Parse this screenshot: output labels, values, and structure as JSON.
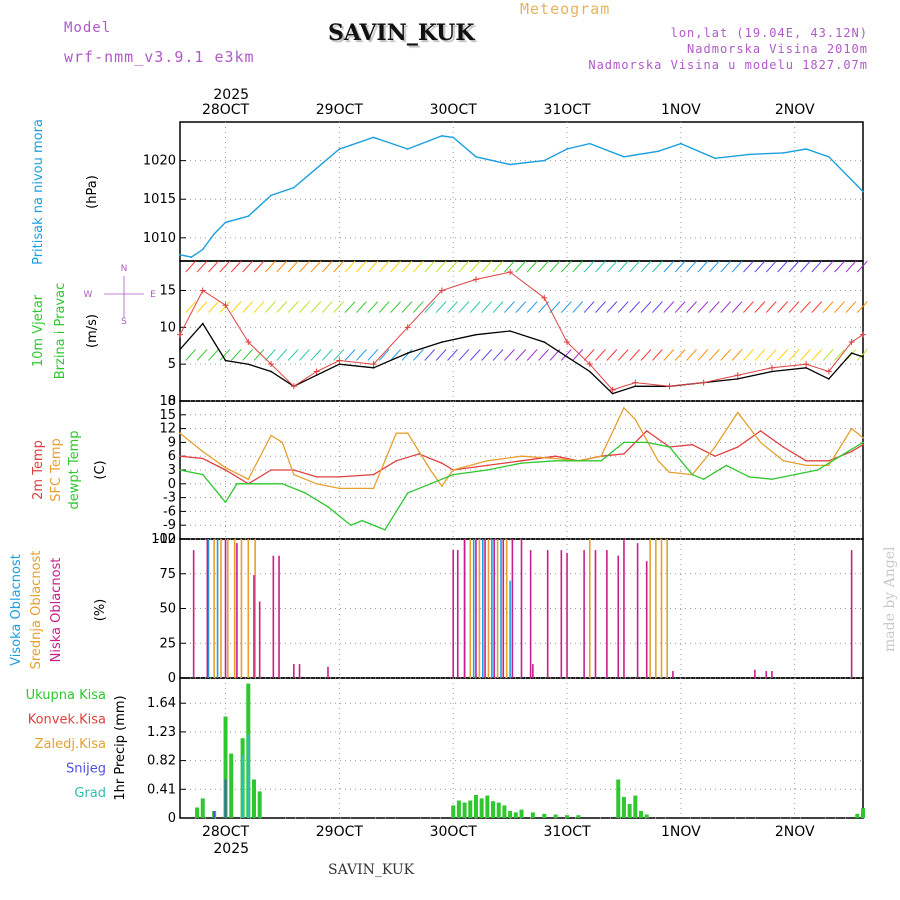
{
  "header": {
    "subtitle": "Meteogram",
    "title": "SAVIN_KUK",
    "model_label": "Model",
    "model_name": "wrf-nmm_v3.9.1 e3km",
    "location_lines": [
      "lon,lat (19.04E, 43.12N)",
      "Nadmorska Visina 2010m",
      "Nadmorska Visina u modelu 1827.07m"
    ],
    "credit": "made by Angel",
    "footer": "SAVIN_KUK"
  },
  "colors": {
    "frame": "#000000",
    "grid": "#9a9a9a",
    "pressure": "#1aa0e0",
    "wind_legend": "#b05ac8"
  },
  "chart_data": [
    {
      "type": "line",
      "panel": "pressure",
      "ylabel_lines": [
        "Pritisak na nivou mora"
      ],
      "unit": "(hPa)",
      "ylim": [
        1007,
        1025
      ],
      "yticks": [
        1010,
        1015,
        1020
      ],
      "top_axis": {
        "year": "2025",
        "days": [
          "28OCT",
          "29OCT",
          "30OCT",
          "31OCT",
          "1NOV",
          "2NOV"
        ]
      },
      "series": [
        {
          "name": "Pritisak na nivou mora",
          "color": "#1aa0e0",
          "x": [
            27.6,
            27.7,
            27.8,
            27.9,
            28.0,
            28.2,
            28.4,
            28.6,
            28.8,
            29.0,
            29.1,
            29.3,
            29.6,
            29.9,
            30.0,
            30.2,
            30.5,
            30.8,
            31.0,
            31.2,
            31.5,
            31.8,
            32.0,
            32.3,
            32.6,
            32.9,
            33.1,
            33.3,
            33.6
          ],
          "values": [
            1007.8,
            1007.5,
            1008.5,
            1010.5,
            1012,
            1012.8,
            1015.5,
            1016.5,
            1019,
            1021.5,
            1022,
            1023,
            1021.5,
            1023.2,
            1023,
            1020.5,
            1019.5,
            1020,
            1021.5,
            1022.2,
            1020.5,
            1021.2,
            1022.2,
            1020.3,
            1020.8,
            1021,
            1021.5,
            1020.5,
            1016
          ]
        }
      ]
    },
    {
      "type": "line",
      "panel": "wind",
      "ylabel_lines": [
        "10m Vjetar",
        "Brzina i Pravac"
      ],
      "unit": "(m/s)",
      "direction_legend": [
        "N",
        "W",
        "E",
        "S"
      ],
      "ylim": [
        0,
        19
      ],
      "yticks": [
        0,
        5,
        10,
        15
      ],
      "series": [
        {
          "name": "10m wind speed",
          "color": "#000000",
          "x": [
            27.6,
            27.8,
            28.0,
            28.2,
            28.4,
            28.6,
            28.8,
            29.0,
            29.3,
            29.6,
            29.9,
            30.2,
            30.5,
            30.8,
            31.0,
            31.2,
            31.4,
            31.6,
            31.9,
            32.2,
            32.5,
            32.8,
            33.1,
            33.3,
            33.5,
            33.6
          ],
          "values": [
            7,
            10.5,
            5.5,
            5,
            4,
            2,
            3.5,
            5,
            4.5,
            6.5,
            8,
            9,
            9.5,
            8,
            6,
            4,
            1,
            2,
            2,
            2.5,
            3,
            4,
            4.5,
            3,
            6.5,
            6
          ]
        },
        {
          "name": "gust",
          "color": "#e04040",
          "x": [
            27.6,
            27.8,
            28.0,
            28.2,
            28.4,
            28.6,
            28.8,
            29.0,
            29.3,
            29.6,
            29.9,
            30.2,
            30.5,
            30.8,
            31.0,
            31.2,
            31.4,
            31.6,
            31.9,
            32.2,
            32.5,
            32.8,
            33.1,
            33.3,
            33.5,
            33.6
          ],
          "values": [
            9,
            15,
            13,
            8,
            5,
            2,
            4,
            5.5,
            5,
            10,
            15,
            16.5,
            17.5,
            14,
            8,
            5,
            1.5,
            2.5,
            2,
            2.5,
            3.5,
            4.5,
            5,
            4,
            8,
            9
          ]
        }
      ]
    },
    {
      "type": "line",
      "panel": "temperature",
      "ylabel_lines": [
        "2m Temp",
        "SFC Temp",
        "dewpt Temp"
      ],
      "unit": "(C)",
      "ylim": [
        -12,
        18
      ],
      "yticks": [
        -12,
        -9,
        -6,
        -3,
        0,
        3,
        6,
        9,
        12,
        15,
        18
      ],
      "series": [
        {
          "name": "2m Temp",
          "color": "#e04040",
          "x": [
            27.6,
            27.8,
            28.0,
            28.2,
            28.4,
            28.6,
            28.8,
            29.0,
            29.3,
            29.5,
            29.7,
            29.9,
            30.0,
            30.3,
            30.6,
            30.9,
            31.1,
            31.3,
            31.5,
            31.7,
            31.9,
            32.1,
            32.3,
            32.5,
            32.7,
            32.9,
            33.1,
            33.3,
            33.5,
            33.6
          ],
          "values": [
            6,
            5.5,
            3,
            0,
            3,
            3,
            1.5,
            1.5,
            2,
            5,
            6.5,
            4.5,
            3,
            4,
            5,
            6,
            5,
            6,
            6.5,
            11.5,
            8,
            8.5,
            6,
            8,
            11.5,
            8,
            5,
            5,
            7,
            8.5
          ]
        },
        {
          "name": "SFC Temp",
          "color": "#e6a030",
          "x": [
            27.6,
            27.8,
            28.0,
            28.2,
            28.4,
            28.5,
            28.6,
            28.8,
            29.0,
            29.3,
            29.5,
            29.6,
            29.8,
            29.9,
            30.0,
            30.3,
            30.6,
            30.9,
            31.1,
            31.3,
            31.5,
            31.6,
            31.8,
            31.9,
            32.1,
            32.3,
            32.5,
            32.7,
            32.9,
            33.1,
            33.3,
            33.5,
            33.6
          ],
          "values": [
            11,
            7,
            3.5,
            1,
            10.5,
            9,
            2,
            0,
            -1,
            -1,
            11,
            11,
            3,
            -0.5,
            3,
            5,
            6,
            5.5,
            5,
            6,
            16.5,
            14,
            5,
            2.5,
            2,
            8,
            15.5,
            9,
            5,
            4,
            4,
            12,
            10
          ]
        },
        {
          "name": "dewpt Temp",
          "color": "#2ec82e",
          "x": [
            27.6,
            27.8,
            28.0,
            28.1,
            28.3,
            28.5,
            28.7,
            28.9,
            29.1,
            29.2,
            29.4,
            29.6,
            29.8,
            30.0,
            30.3,
            30.6,
            30.9,
            31.1,
            31.3,
            31.5,
            31.7,
            31.9,
            32.1,
            32.2,
            32.4,
            32.6,
            32.8,
            33.0,
            33.2,
            33.4,
            33.6
          ],
          "values": [
            3,
            2,
            -4,
            0,
            0,
            0,
            -2,
            -5,
            -9,
            -8,
            -10,
            -2,
            0,
            2,
            3,
            4.5,
            5,
            5,
            5,
            9,
            9,
            8,
            2,
            1,
            4,
            1.5,
            1,
            2,
            3,
            6,
            9
          ]
        }
      ]
    },
    {
      "type": "bar",
      "panel": "clouds",
      "ylabel_lines": [
        "Visoka Oblacnost",
        "Srednja Oblacnost",
        "Niska Oblacnost"
      ],
      "unit": "(%)",
      "ylim": [
        0,
        100
      ],
      "yticks": [
        0,
        25,
        50,
        75,
        100
      ],
      "series": [
        {
          "name": "Visoka Oblacnost",
          "color": "#1aa0e0",
          "x": [
            27.85,
            27.93,
            30.1,
            30.18,
            30.26,
            30.34,
            30.42,
            30.5
          ],
          "values": [
            100,
            100,
            100,
            100,
            100,
            100,
            100,
            70
          ]
        },
        {
          "name": "Srednja Oblacnost",
          "color": "#e6a030",
          "x": [
            27.9,
            27.96,
            28.02,
            28.08,
            28.14,
            28.2,
            28.26,
            30.15,
            30.23,
            30.31,
            30.39,
            30.47,
            31.2,
            31.73,
            31.78,
            31.83,
            31.88
          ],
          "values": [
            100,
            100,
            100,
            100,
            100,
            100,
            100,
            100,
            100,
            100,
            100,
            100,
            100,
            100,
            100,
            100,
            100
          ]
        },
        {
          "name": "Niska Oblacnost",
          "color": "#c81e8c",
          "x": [
            27.72,
            27.84,
            28.0,
            28.1,
            28.25,
            28.3,
            28.42,
            28.47,
            28.6,
            28.65,
            28.9,
            30.0,
            30.04,
            30.1,
            30.2,
            30.28,
            30.36,
            30.44,
            30.52,
            30.6,
            30.68,
            30.7,
            30.83,
            30.95,
            31.0,
            31.15,
            31.25,
            31.35,
            31.45,
            31.5,
            31.62,
            31.7,
            31.93,
            32.65,
            32.75,
            32.8,
            33.5
          ],
          "values": [
            92,
            100,
            100,
            97,
            74,
            55,
            88,
            88,
            10,
            10,
            8,
            92,
            92,
            100,
            100,
            100,
            100,
            100,
            100,
            100,
            92,
            10,
            92,
            92,
            90,
            92,
            92,
            92,
            88,
            100,
            97,
            84,
            5,
            6,
            5,
            5,
            92
          ]
        }
      ]
    },
    {
      "type": "bar",
      "panel": "precipitation",
      "ylabel_lines": [
        "1hr Precip (mm)"
      ],
      "legend": [
        "Ukupna Kisa",
        "Konvek.Kisa",
        "Zaledj.Kisa",
        "Snijeg",
        "Grad"
      ],
      "legend_colors": [
        "#2ec82e",
        "#e04040",
        "#e6a030",
        "#5050e0",
        "#30c0b0"
      ],
      "ylim": [
        0,
        2.0
      ],
      "yticks": [
        0,
        0.41,
        0.82,
        1.23,
        1.64
      ],
      "xlabels": {
        "year": "2025",
        "days": [
          "28OCT",
          "29OCT",
          "30OCT",
          "31OCT",
          "1NOV",
          "2NOV"
        ]
      },
      "series": [
        {
          "name": "Ukupna Kisa",
          "color": "#2ec82e",
          "x": [
            27.75,
            27.8,
            27.9,
            28.0,
            28.05,
            28.15,
            28.2,
            28.25,
            28.3,
            30.0,
            30.05,
            30.1,
            30.15,
            30.2,
            30.25,
            30.3,
            30.35,
            30.4,
            30.45,
            30.5,
            30.55,
            30.6,
            30.7,
            30.8,
            30.9,
            31.0,
            31.1,
            31.45,
            31.5,
            31.55,
            31.6,
            31.65,
            31.7,
            33.55,
            33.6
          ],
          "values": [
            0.15,
            0.28,
            0.1,
            1.45,
            0.92,
            1.14,
            1.92,
            0.55,
            0.38,
            0.18,
            0.25,
            0.22,
            0.25,
            0.33,
            0.28,
            0.32,
            0.24,
            0.22,
            0.18,
            0.1,
            0.08,
            0.12,
            0.08,
            0.06,
            0.05,
            0.04,
            0.04,
            0.55,
            0.3,
            0.2,
            0.32,
            0.1,
            0.05,
            0.06,
            0.14
          ]
        },
        {
          "name": "Snijeg",
          "color": "#5050e0",
          "x": [
            27.9,
            28.0
          ],
          "values": [
            0.1,
            0.55
          ]
        },
        {
          "name": "Grad",
          "color": "#30c0b0",
          "x": [
            28.15,
            28.2
          ],
          "values": [
            0.9,
            1.2
          ]
        }
      ]
    }
  ]
}
